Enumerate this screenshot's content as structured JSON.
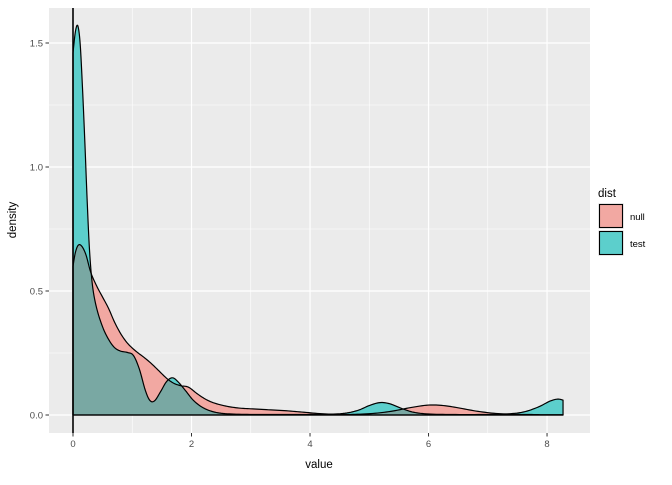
{
  "chart_data": {
    "type": "area",
    "subtype": "density",
    "title": "",
    "xlabel": "value",
    "ylabel": "density",
    "xlim": [
      -0.405,
      8.725
    ],
    "ylim": [
      -0.0726,
      1.6411
    ],
    "x_major_ticks": [
      0,
      2,
      4,
      6,
      8
    ],
    "x_tick_labels": [
      "0",
      "2",
      "4",
      "6",
      "8"
    ],
    "x_minor_ticks": [
      1,
      3,
      5,
      7
    ],
    "y_major_ticks": [
      0,
      0.5,
      1.0,
      1.5
    ],
    "y_tick_labels": [
      "0.0",
      "0.5",
      "1.0",
      "1.5"
    ],
    "y_minor_ticks": [
      0.25,
      0.75,
      1.25
    ],
    "grid": true,
    "vline_x": 0,
    "panel_color": "#EBEBEB",
    "grid_color": "#FFFFFF",
    "outline_color": "#000000",
    "overlap_color": "#79A8A3",
    "tick_label_color": "#4D4D4D",
    "series": [
      {
        "name": "null",
        "color": "#F2A8A2",
        "points": [
          [
            0,
            0.6
          ],
          [
            0.04,
            0.655
          ],
          [
            0.09,
            0.685
          ],
          [
            0.15,
            0.68
          ],
          [
            0.22,
            0.645
          ],
          [
            0.3,
            0.575
          ],
          [
            0.4,
            0.52
          ],
          [
            0.5,
            0.475
          ],
          [
            0.6,
            0.43
          ],
          [
            0.7,
            0.375
          ],
          [
            0.8,
            0.33
          ],
          [
            0.9,
            0.295
          ],
          [
            1.0,
            0.27
          ],
          [
            1.1,
            0.25
          ],
          [
            1.2,
            0.232
          ],
          [
            1.32,
            0.208
          ],
          [
            1.45,
            0.178
          ],
          [
            1.58,
            0.148
          ],
          [
            1.7,
            0.128
          ],
          [
            1.82,
            0.118
          ],
          [
            1.95,
            0.112
          ],
          [
            2.1,
            0.085
          ],
          [
            2.25,
            0.062
          ],
          [
            2.4,
            0.047
          ],
          [
            2.6,
            0.035
          ],
          [
            2.8,
            0.028
          ],
          [
            3.0,
            0.025
          ],
          [
            3.3,
            0.021
          ],
          [
            3.6,
            0.017
          ],
          [
            3.9,
            0.011
          ],
          [
            4.2,
            0.005
          ],
          [
            4.5,
            0.002
          ],
          [
            4.8,
            0.003
          ],
          [
            5.1,
            0.007
          ],
          [
            5.4,
            0.016
          ],
          [
            5.7,
            0.03
          ],
          [
            6.0,
            0.04
          ],
          [
            6.25,
            0.038
          ],
          [
            6.5,
            0.029
          ],
          [
            6.8,
            0.016
          ],
          [
            7.1,
            0.007
          ],
          [
            7.4,
            0.003
          ],
          [
            7.7,
            0.002
          ],
          [
            8.0,
            0.001
          ],
          [
            8.27,
            0.001
          ]
        ]
      },
      {
        "name": "test",
        "color": "#5CCFCC",
        "points": [
          [
            0,
            1.46
          ],
          [
            0.04,
            1.545
          ],
          [
            0.08,
            1.57
          ],
          [
            0.12,
            1.5
          ],
          [
            0.16,
            1.32
          ],
          [
            0.2,
            1.1
          ],
          [
            0.24,
            0.86
          ],
          [
            0.28,
            0.66
          ],
          [
            0.33,
            0.52
          ],
          [
            0.4,
            0.43
          ],
          [
            0.5,
            0.355
          ],
          [
            0.6,
            0.305
          ],
          [
            0.7,
            0.272
          ],
          [
            0.8,
            0.258
          ],
          [
            0.92,
            0.252
          ],
          [
            1.02,
            0.24
          ],
          [
            1.12,
            0.185
          ],
          [
            1.22,
            0.1
          ],
          [
            1.3,
            0.058
          ],
          [
            1.38,
            0.058
          ],
          [
            1.48,
            0.095
          ],
          [
            1.58,
            0.135
          ],
          [
            1.68,
            0.15
          ],
          [
            1.78,
            0.132
          ],
          [
            1.9,
            0.098
          ],
          [
            2.02,
            0.062
          ],
          [
            2.15,
            0.036
          ],
          [
            2.3,
            0.018
          ],
          [
            2.5,
            0.007
          ],
          [
            2.8,
            0.003
          ],
          [
            3.2,
            0.002
          ],
          [
            3.7,
            0.002
          ],
          [
            4.2,
            0.003
          ],
          [
            4.55,
            0.006
          ],
          [
            4.8,
            0.018
          ],
          [
            5.0,
            0.038
          ],
          [
            5.18,
            0.05
          ],
          [
            5.35,
            0.045
          ],
          [
            5.55,
            0.026
          ],
          [
            5.75,
            0.011
          ],
          [
            6.0,
            0.004
          ],
          [
            6.4,
            0.002
          ],
          [
            6.9,
            0.002
          ],
          [
            7.3,
            0.004
          ],
          [
            7.6,
            0.012
          ],
          [
            7.85,
            0.032
          ],
          [
            8.05,
            0.056
          ],
          [
            8.18,
            0.064
          ],
          [
            8.27,
            0.06
          ]
        ]
      }
    ],
    "legend": {
      "title": "dist",
      "position": "right",
      "entries": [
        {
          "label": "null",
          "color": "#F2A8A2"
        },
        {
          "label": "test",
          "color": "#5CCFCC"
        }
      ]
    }
  }
}
